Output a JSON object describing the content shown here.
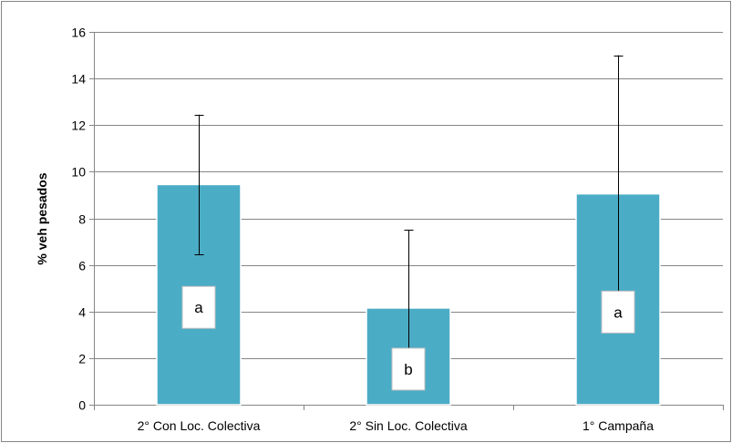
{
  "chart_data": {
    "type": "bar",
    "categories": [
      "2° Con Loc. Colectiva",
      "2° Sin Loc. Colectiva",
      "1° Campaña"
    ],
    "values": [
      9.45,
      4.15,
      9.05
    ],
    "error_low": [
      6.45,
      0.85,
      3.15
    ],
    "error_high": [
      12.45,
      7.5,
      15.0
    ],
    "significance_labels": [
      "a",
      "b",
      "a"
    ],
    "ylabel": "% veh pesados",
    "xlabel": "",
    "ylim": [
      0,
      16
    ],
    "yticks": [
      "0",
      "2",
      "4",
      "6",
      "8",
      "10",
      "12",
      "14",
      "16"
    ],
    "grid": true,
    "legend": "none",
    "bar_color": "#4BACC6",
    "bar_edge_color": "#FFFFFF",
    "gridline_color": "#868686",
    "frame_color": "#868686"
  }
}
